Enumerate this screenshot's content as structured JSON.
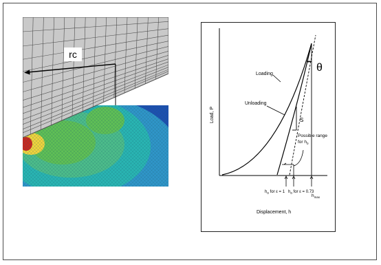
{
  "fem_figure": {
    "indenter_label": "rc",
    "colors": {
      "indenter_fill": "#c9c9c9",
      "indenter_mesh": "#4d4d4d",
      "contour_deep_blue": "#1d4fb0",
      "contour_light_blue": "#2f95c8",
      "contour_cyan": "#29b4b2",
      "contour_green": "#5fbf55",
      "contour_yellow": "#f0d43c",
      "contour_red": "#c8281e"
    }
  },
  "curve_figure": {
    "y_axis_label": "Load, P",
    "x_axis_label": "Displacement, h",
    "theta_label": "θ",
    "loading_label": "Loading",
    "unloading_label": "Unloading",
    "stiffness_label": "S",
    "range_label_line1": "Possible range",
    "range_label_line2_main": "for h",
    "range_label_line2_sub": "0",
    "h0_eps1_main": "h",
    "h0_eps1_sub": "0",
    "h0_eps1_rest": " for ε = 1",
    "h0_eps073_main": "h",
    "h0_eps073_sub": "0",
    "h0_eps073_rest": " for ε = 0.73",
    "hmax_main": "h",
    "hmax_sub": "max"
  }
}
